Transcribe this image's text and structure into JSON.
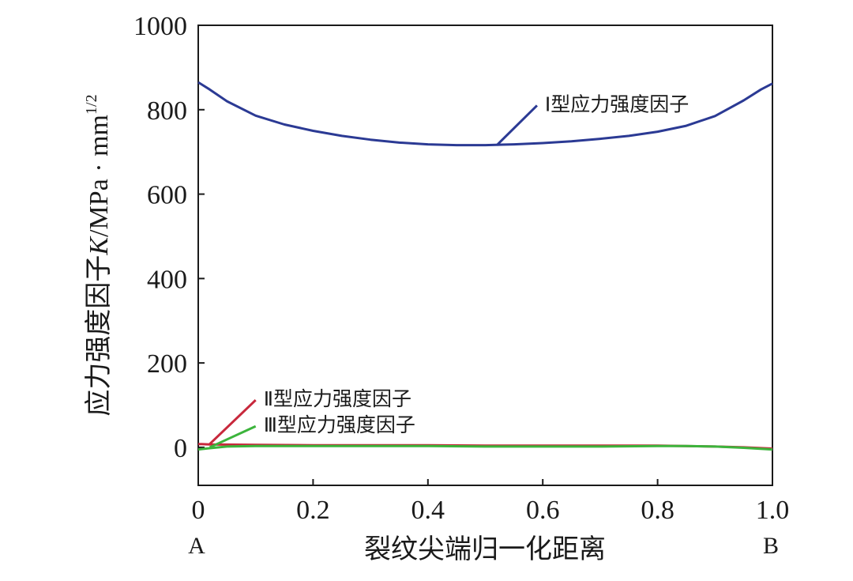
{
  "chart_data": {
    "type": "line",
    "ylabel": "应力强度因子K/MPa·mm1/2",
    "ylabel_parts": {
      "prefix": "应力强度因子",
      "var": "K",
      "unit": "/MPa · mm",
      "sup": "1/2"
    },
    "xlabel": "裂纹尖端归一化距离",
    "x_end_labels": {
      "start": "A",
      "end": "B"
    },
    "xlim": [
      0,
      1.0
    ],
    "ylim": [
      -90,
      1000
    ],
    "xticks": [
      0,
      0.2,
      0.4,
      0.6,
      0.8,
      1.0
    ],
    "xtick_labels": [
      "0",
      "0.2",
      "0.4",
      "0.6",
      "0.8",
      "1.0"
    ],
    "yticks": [
      0,
      200,
      400,
      600,
      800,
      1000
    ],
    "ytick_labels": [
      "0",
      "200",
      "400",
      "600",
      "800",
      "1000"
    ],
    "grid": false,
    "series": [
      {
        "name": "Ⅰ型应力强度因子",
        "color": "#2b3a94",
        "x": [
          0,
          0.02,
          0.05,
          0.1,
          0.15,
          0.2,
          0.25,
          0.3,
          0.35,
          0.4,
          0.45,
          0.5,
          0.55,
          0.6,
          0.65,
          0.7,
          0.75,
          0.8,
          0.85,
          0.9,
          0.95,
          0.98,
          1.0
        ],
        "y": [
          865,
          848,
          820,
          786,
          765,
          750,
          738,
          729,
          722,
          718,
          716,
          716,
          718,
          721,
          725,
          731,
          738,
          748,
          762,
          785,
          822,
          848,
          862
        ]
      },
      {
        "name": "Ⅱ型应力强度因子",
        "color": "#c8283c",
        "x": [
          0,
          0.02,
          0.1,
          0.2,
          0.3,
          0.4,
          0.5,
          0.6,
          0.7,
          0.8,
          0.9,
          0.95,
          1.0
        ],
        "y": [
          8,
          7,
          6,
          5,
          5,
          5,
          4,
          4,
          4,
          4,
          2,
          0,
          -3
        ]
      },
      {
        "name": "Ⅲ型应力强度因子",
        "color": "#3cb43c",
        "x": [
          0,
          0.02,
          0.05,
          0.1,
          0.2,
          0.3,
          0.4,
          0.5,
          0.6,
          0.7,
          0.8,
          0.85,
          0.9,
          0.95,
          1.0
        ],
        "y": [
          -5,
          -2,
          2,
          3,
          3,
          3,
          3,
          2,
          2,
          2,
          3,
          3,
          2,
          -1,
          -5
        ]
      }
    ],
    "annotations": [
      {
        "text": "Ⅰ型应力强度因子",
        "series": 0,
        "point": [
          0.52,
          716
        ],
        "label_pos": [
          0.59,
          810
        ]
      },
      {
        "text": "Ⅱ型应力强度因子",
        "series": 1,
        "point": [
          0.02,
          8
        ],
        "label_pos": [
          0.1,
          112
        ]
      },
      {
        "text": "Ⅲ型应力强度因子",
        "series": 2,
        "point": [
          0.02,
          0
        ],
        "label_pos": [
          0.1,
          50
        ]
      }
    ]
  }
}
